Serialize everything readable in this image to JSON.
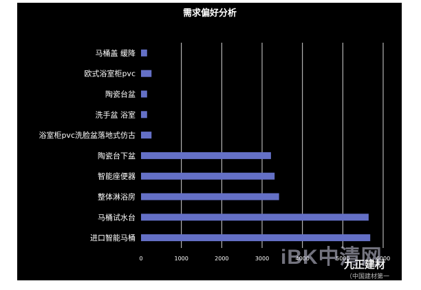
{
  "chart_data": {
    "type": "bar",
    "orientation": "horizontal",
    "title": "需求偏好分析",
    "categories": [
      "马桶盖 缓降",
      "欧式浴室柜pvc",
      "陶瓷台盆",
      "洗手盆 浴室",
      "浴室柜pvc洗脸盆落地式仿古",
      "陶瓷台下盆",
      "智能座便器",
      "整体淋浴房",
      "马桶试水台",
      "进口智能马桶"
    ],
    "values": [
      150,
      260,
      150,
      150,
      260,
      3220,
      3310,
      3420,
      5640,
      5680
    ],
    "xlim": [
      0,
      6000
    ],
    "xticks": [
      0,
      1000,
      2000,
      3000,
      4000,
      5000,
      6000
    ],
    "grid": true,
    "legend": "none",
    "colors": {
      "background": "#000000",
      "bar": "#6470c6",
      "grid": "#d8d8d8",
      "text": "#ffffff"
    }
  },
  "watermark": {
    "text": "iBK中清网",
    "brand": "九正建材",
    "brand_sub": "（中国建材第一"
  }
}
